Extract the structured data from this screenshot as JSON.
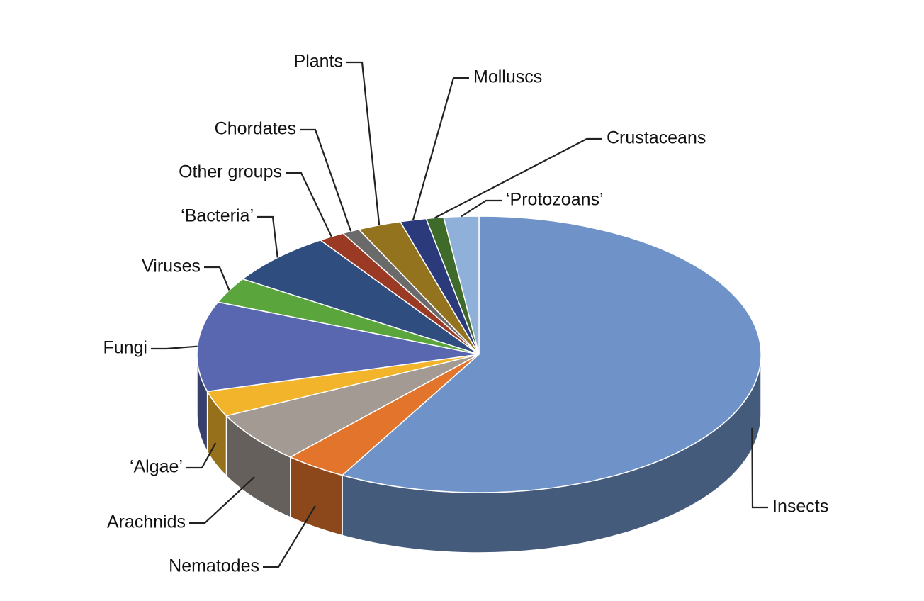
{
  "chart_data": {
    "type": "pie",
    "categories": [
      "Insects",
      "Nematodes",
      "Arachnids",
      "‘Algae’",
      "Fungi",
      "Viruses",
      "‘Bacteria’",
      "Other groups",
      "Chordates",
      "Plants",
      "Molluscs",
      "Crustaceans",
      "‘Protozoans’"
    ],
    "values": [
      58,
      3.6,
      6,
      3,
      10.5,
      3,
      6.3,
      1.5,
      1,
      2.5,
      1.5,
      1,
      2
    ],
    "colors": [
      "#6f93c8",
      "#e2742b",
      "#a39b93",
      "#f2b42a",
      "#5867b0",
      "#5aa53c",
      "#2f4d7f",
      "#9b3a24",
      "#6a6a6a",
      "#94731f",
      "#2a3a7a",
      "#3e6b2a",
      "#8fb0d8"
    ]
  }
}
